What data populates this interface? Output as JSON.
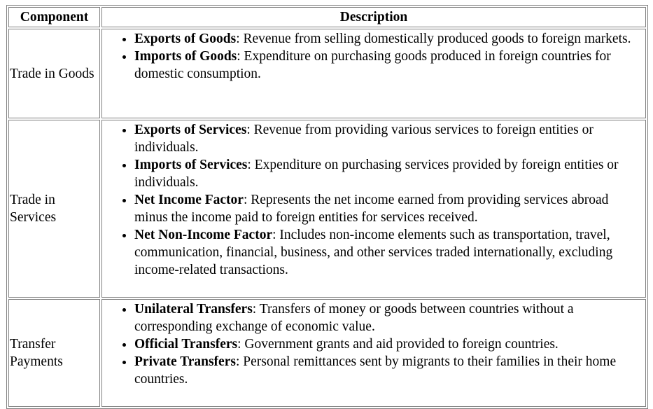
{
  "table": {
    "headers": [
      "Component",
      "Description"
    ],
    "rows": [
      {
        "component": "Trade in Goods",
        "items": [
          {
            "term": "Exports of Goods",
            "desc": ": Revenue from selling domestically produced goods to foreign markets."
          },
          {
            "term": "Imports of Goods",
            "desc": ": Expenditure on purchasing goods produced in foreign countries for domestic consumption."
          }
        ]
      },
      {
        "component": "Trade in Services",
        "items": [
          {
            "term": "Exports of Services",
            "desc": ": Revenue from providing various services to foreign entities or individuals."
          },
          {
            "term": "Imports of Services",
            "desc": ": Expenditure on purchasing services provided by foreign entities or individuals."
          },
          {
            "term": "Net Income Factor",
            "desc": ": Represents the net income earned from providing services abroad minus the income paid to foreign entities for services received."
          },
          {
            "term": "Net Non-Income Factor",
            "desc": ": Includes non-income elements such as transportation, travel, communication, financial, business, and other services traded internationally, excluding income-related transactions."
          }
        ]
      },
      {
        "component": "Transfer Payments",
        "items": [
          {
            "term": "Unilateral Transfers",
            "desc": ": Transfers of money or goods between countries without a corresponding exchange of economic value."
          },
          {
            "term": "Official Transfers",
            "desc": ": Government grants and aid provided to foreign countries."
          },
          {
            "term": "Private Transfers",
            "desc": ": Personal remittances sent by migrants to their families in their home countries."
          }
        ]
      }
    ]
  }
}
